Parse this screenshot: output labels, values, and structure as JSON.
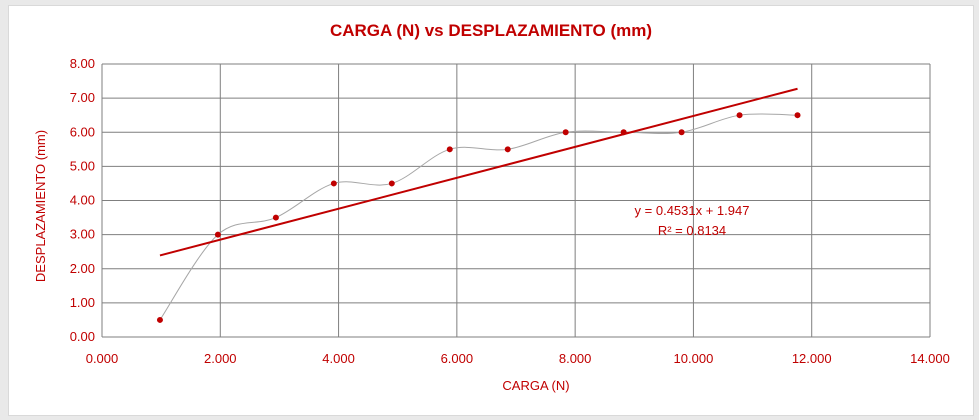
{
  "colors": {
    "text": "#c00000",
    "trend": "#c00000",
    "marker": "#c00000",
    "curve": "#a6a6a6",
    "grid": "#7f7f7f"
  },
  "chart_data": {
    "type": "scatter",
    "title": "CARGA (N) vs DESPLAZAMIENTO (mm)",
    "xlabel": "CARGA (N)",
    "ylabel": "DESPLAZAMIENTO (mm)",
    "xlim": [
      0,
      14
    ],
    "ylim": [
      0,
      8
    ],
    "grid": true,
    "smoothed_line": true,
    "x_ticks": [
      "0.000",
      "2.000",
      "4.000",
      "6.000",
      "8.000",
      "10.000",
      "12.000",
      "14.000"
    ],
    "y_ticks": [
      "0.00",
      "1.00",
      "2.00",
      "3.00",
      "4.00",
      "5.00",
      "6.00",
      "7.00",
      "8.00"
    ],
    "series": [
      {
        "x": [
          0.98,
          1.96,
          2.94,
          3.92,
          4.9,
          5.88,
          6.86,
          7.84,
          8.82,
          9.8,
          10.78,
          11.76
        ],
        "y": [
          0.5,
          3.0,
          3.5,
          4.5,
          4.5,
          5.5,
          5.5,
          6.0,
          6.0,
          6.0,
          6.5,
          6.5
        ]
      }
    ],
    "trendline": {
      "type": "linear",
      "slope": 0.4531,
      "intercept": 1.947,
      "equation": "y = 0.4531x + 1.947",
      "r2": "R² = 0.8134"
    }
  }
}
